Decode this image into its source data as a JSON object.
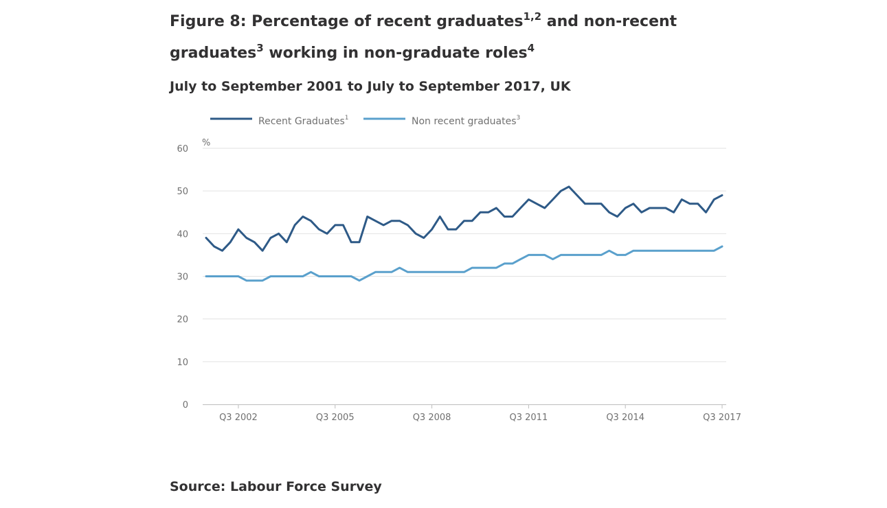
{
  "title_part1": "Figure 8: Percentage of recent graduates",
  "title_sup1": "1,2",
  "title_part2": " and non-recent",
  "title_part3": "graduates",
  "title_sup2": "3",
  "title_part4": " working in non-graduate roles",
  "title_sup3": "4",
  "subtitle": "July to September 2001 to July to September 2017, UK",
  "source": "Source: Labour Force Survey",
  "chart_data": {
    "type": "line",
    "ylabel": "%",
    "ylim": [
      0,
      60
    ],
    "yticks": [
      "0",
      "10",
      "20",
      "30",
      "40",
      "50",
      "60"
    ],
    "xtick_labels": [
      "Q3 2002",
      "Q3 2005",
      "Q3 2008",
      "Q3 2011",
      "Q3 2014",
      "Q3 2017"
    ],
    "grid": true,
    "legend_position": "top",
    "series": [
      {
        "name": "Recent Graduates",
        "name_sup": "1",
        "color": "#2e5a87",
        "values": [
          39,
          37,
          36,
          38,
          41,
          39,
          38,
          36,
          39,
          40,
          38,
          42,
          44,
          43,
          41,
          40,
          42,
          42,
          38,
          38,
          44,
          43,
          42,
          43,
          43,
          42,
          40,
          39,
          41,
          44,
          41,
          41,
          43,
          43,
          45,
          45,
          46,
          44,
          44,
          46,
          48,
          47,
          46,
          48,
          50,
          51,
          49,
          47,
          47,
          47,
          45,
          44,
          46,
          47,
          45,
          46,
          46,
          46,
          45,
          48,
          47,
          47,
          45,
          48,
          49
        ]
      },
      {
        "name": "Non recent graduates",
        "name_sup": "3",
        "color": "#5aa0cc",
        "values": [
          30,
          30,
          30,
          30,
          30,
          29,
          29,
          29,
          30,
          30,
          30,
          30,
          30,
          31,
          30,
          30,
          30,
          30,
          30,
          29,
          30,
          31,
          31,
          31,
          32,
          31,
          31,
          31,
          31,
          31,
          31,
          31,
          31,
          32,
          32,
          32,
          32,
          33,
          33,
          34,
          35,
          35,
          35,
          34,
          35,
          35,
          35,
          35,
          35,
          35,
          36,
          35,
          35,
          36,
          36,
          36,
          36,
          36,
          36,
          36,
          36,
          36,
          36,
          36,
          37
        ]
      }
    ]
  }
}
